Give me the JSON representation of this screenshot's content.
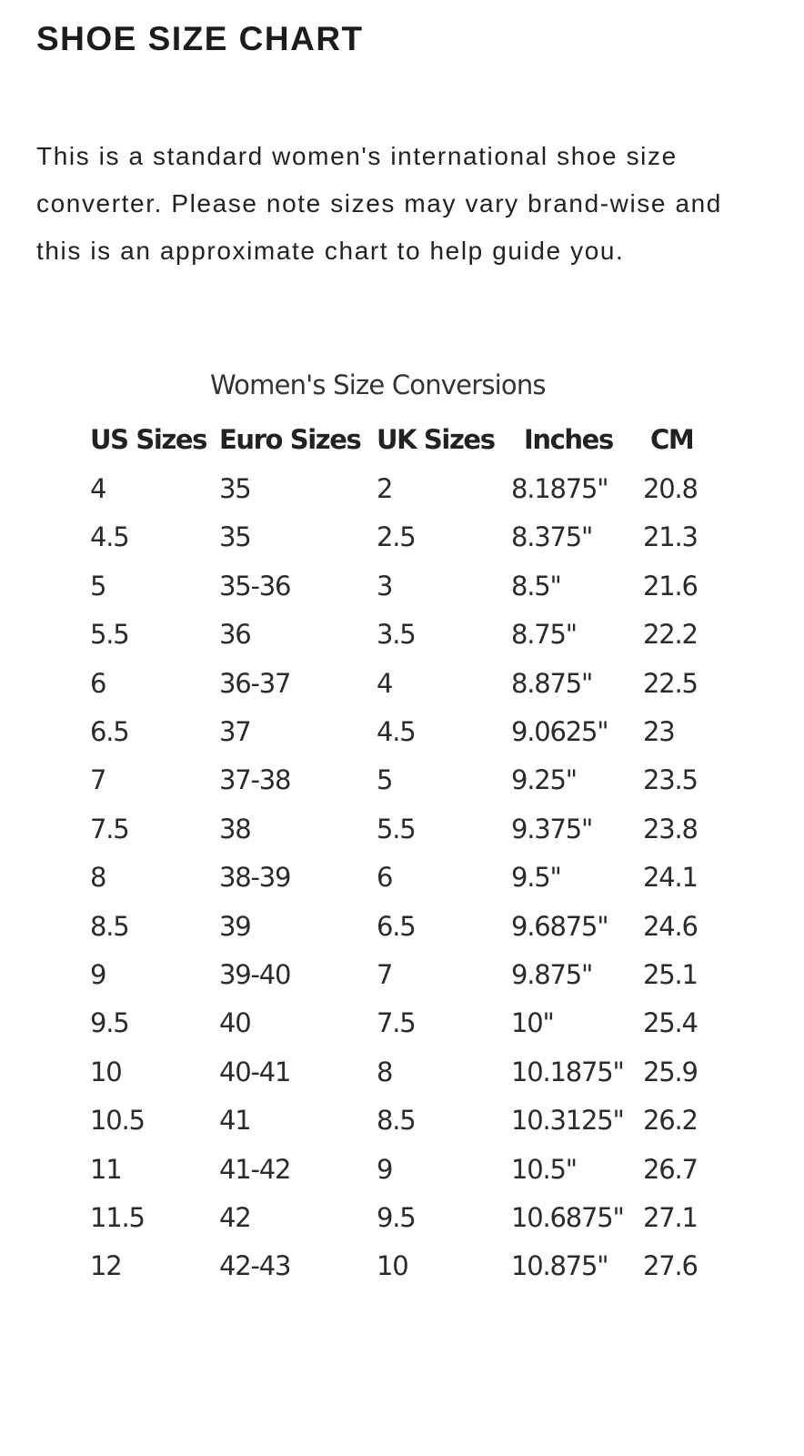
{
  "page": {
    "title": "SHOE SIZE CHART",
    "intro": "This is a standard women's international shoe size converter. Please note sizes may vary brand-wise and this is an approximate chart to help guide you."
  },
  "size_chart": {
    "caption": "Women's Size Conversions",
    "headers": {
      "us": "US Sizes",
      "euro": "Euro Sizes",
      "uk": "UK Sizes",
      "inches": "Inches",
      "cm": "CM"
    },
    "rows": [
      {
        "us": "4",
        "euro": "35",
        "uk": "2",
        "inches": "8.1875\"",
        "cm": "20.8"
      },
      {
        "us": "4.5",
        "euro": "35",
        "uk": "2.5",
        "inches": "8.375\"",
        "cm": "21.3"
      },
      {
        "us": "5",
        "euro": "35-36",
        "uk": "3",
        "inches": "8.5\"",
        "cm": "21.6"
      },
      {
        "us": "5.5",
        "euro": "36",
        "uk": "3.5",
        "inches": "8.75\"",
        "cm": "22.2"
      },
      {
        "us": "6",
        "euro": "36-37",
        "uk": "4",
        "inches": "8.875\"",
        "cm": "22.5"
      },
      {
        "us": "6.5",
        "euro": "37",
        "uk": "4.5",
        "inches": "9.0625\"",
        "cm": "23"
      },
      {
        "us": "7",
        "euro": "37-38",
        "uk": "5",
        "inches": "9.25\"",
        "cm": "23.5"
      },
      {
        "us": "7.5",
        "euro": "38",
        "uk": "5.5",
        "inches": "9.375\"",
        "cm": "23.8"
      },
      {
        "us": "8",
        "euro": "38-39",
        "uk": "6",
        "inches": "9.5\"",
        "cm": "24.1"
      },
      {
        "us": "8.5",
        "euro": "39",
        "uk": "6.5",
        "inches": "9.6875\"",
        "cm": "24.6"
      },
      {
        "us": "9",
        "euro": "39-40",
        "uk": "7",
        "inches": "9.875\"",
        "cm": "25.1"
      },
      {
        "us": "9.5",
        "euro": "40",
        "uk": "7.5",
        "inches": "10\"",
        "cm": "25.4"
      },
      {
        "us": "10",
        "euro": "40-41",
        "uk": "8",
        "inches": "10.1875\"",
        "cm": "25.9"
      },
      {
        "us": "10.5",
        "euro": "41",
        "uk": "8.5",
        "inches": "10.3125\"",
        "cm": "26.2"
      },
      {
        "us": "11",
        "euro": "41-42",
        "uk": "9",
        "inches": "10.5\"",
        "cm": "26.7"
      },
      {
        "us": "11.5",
        "euro": "42",
        "uk": "9.5",
        "inches": "10.6875\"",
        "cm": "27.1"
      },
      {
        "us": "12",
        "euro": "42-43",
        "uk": "10",
        "inches": "10.875\"",
        "cm": "27.6"
      }
    ]
  }
}
